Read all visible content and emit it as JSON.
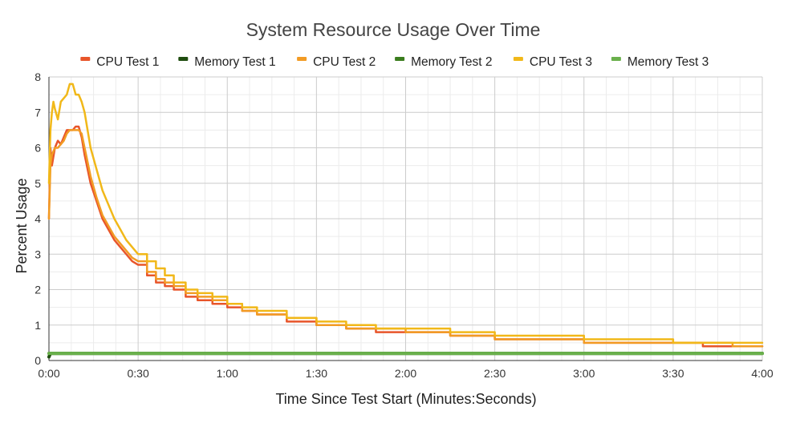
{
  "chart_data": {
    "type": "line",
    "title": "System Resource Usage Over Time",
    "xlabel": "Time Since Test Start (Minutes:Seconds)",
    "ylabel": "Percent Usage",
    "xlim": [
      0,
      240
    ],
    "ylim": [
      0,
      8
    ],
    "x_ticks": [
      0,
      30,
      60,
      90,
      120,
      150,
      180,
      210,
      240
    ],
    "x_tick_labels": [
      "0:00",
      "0:30",
      "1:00",
      "1:30",
      "2:00",
      "2:30",
      "3:00",
      "3:30",
      "4:00"
    ],
    "y_ticks": [
      0,
      1,
      2,
      3,
      4,
      5,
      6,
      7,
      8
    ],
    "grid": true,
    "legend_position": "top",
    "series": [
      {
        "name": "CPU Test 1",
        "color": "#e8552a",
        "x": [
          0,
          0.5,
          1,
          2,
          3,
          4,
          5,
          6,
          7,
          8,
          9,
          10,
          11,
          12,
          14,
          16,
          18,
          20,
          22,
          24,
          26,
          28,
          30,
          33,
          36,
          39,
          42,
          46,
          50,
          55,
          60,
          65,
          70,
          80,
          90,
          100,
          110,
          120,
          135,
          150,
          165,
          180,
          200,
          220,
          230,
          240
        ],
        "y": [
          4.0,
          6.0,
          5.5,
          6.0,
          6.2,
          6.1,
          6.3,
          6.5,
          6.5,
          6.5,
          6.6,
          6.6,
          6.3,
          5.8,
          5.0,
          4.5,
          4.0,
          3.7,
          3.4,
          3.2,
          3.0,
          2.8,
          2.7,
          2.4,
          2.2,
          2.1,
          2.0,
          1.8,
          1.7,
          1.6,
          1.5,
          1.4,
          1.3,
          1.1,
          1.0,
          0.9,
          0.8,
          0.8,
          0.7,
          0.6,
          0.6,
          0.5,
          0.5,
          0.4,
          0.4,
          0.4
        ]
      },
      {
        "name": "Memory Test 1",
        "color": "#1f4d0f",
        "x": [
          0,
          0.5,
          1,
          10,
          60,
          120,
          180,
          220,
          240
        ],
        "y": [
          0.1,
          0.2,
          0.2,
          0.2,
          0.2,
          0.2,
          0.2,
          0.2,
          0.2
        ]
      },
      {
        "name": "CPU Test 2",
        "color": "#f29b24",
        "x": [
          0,
          0.5,
          1,
          2,
          3,
          4,
          5,
          6,
          7,
          8,
          9,
          10,
          11,
          12,
          14,
          16,
          18,
          20,
          22,
          24,
          26,
          28,
          30,
          33,
          36,
          39,
          42,
          46,
          50,
          55,
          60,
          65,
          70,
          80,
          90,
          100,
          110,
          120,
          135,
          150,
          165,
          180,
          200,
          220,
          230,
          240
        ],
        "y": [
          4.0,
          5.5,
          5.8,
          6.0,
          6.0,
          6.1,
          6.2,
          6.4,
          6.5,
          6.5,
          6.5,
          6.5,
          6.4,
          6.0,
          5.2,
          4.6,
          4.1,
          3.8,
          3.5,
          3.3,
          3.1,
          2.9,
          2.8,
          2.5,
          2.3,
          2.2,
          2.1,
          1.9,
          1.8,
          1.7,
          1.6,
          1.4,
          1.3,
          1.2,
          1.0,
          0.9,
          0.9,
          0.8,
          0.7,
          0.6,
          0.6,
          0.5,
          0.5,
          0.5,
          0.4,
          0.4
        ]
      },
      {
        "name": "Memory Test 2",
        "color": "#3b7d1e",
        "x": [
          0,
          0.5,
          1,
          10,
          60,
          120,
          180,
          220,
          240
        ],
        "y": [
          0.2,
          0.2,
          0.2,
          0.2,
          0.2,
          0.2,
          0.2,
          0.2,
          0.2
        ]
      },
      {
        "name": "CPU Test 3",
        "color": "#f1b819",
        "x": [
          0,
          0.5,
          1,
          1.5,
          2,
          3,
          4,
          5,
          6,
          7,
          8,
          9,
          10,
          11,
          12,
          13,
          14,
          16,
          18,
          20,
          22,
          24,
          26,
          28,
          30,
          33,
          36,
          39,
          42,
          46,
          50,
          55,
          60,
          65,
          70,
          80,
          90,
          100,
          110,
          120,
          135,
          150,
          165,
          180,
          200,
          210,
          220,
          230,
          240
        ],
        "y": [
          5.0,
          6.5,
          7.0,
          7.3,
          7.1,
          6.8,
          7.3,
          7.4,
          7.5,
          7.8,
          7.8,
          7.5,
          7.5,
          7.3,
          7.0,
          6.5,
          6.0,
          5.4,
          4.8,
          4.4,
          4.0,
          3.7,
          3.4,
          3.2,
          3.0,
          2.8,
          2.6,
          2.4,
          2.2,
          2.0,
          1.9,
          1.8,
          1.6,
          1.5,
          1.4,
          1.2,
          1.1,
          1.0,
          0.9,
          0.9,
          0.8,
          0.7,
          0.7,
          0.6,
          0.6,
          0.5,
          0.5,
          0.5,
          0.5
        ]
      },
      {
        "name": "Memory Test 3",
        "color": "#6ab04c",
        "x": [
          0,
          0.5,
          1,
          10,
          60,
          120,
          180,
          220,
          240
        ],
        "y": [
          0.2,
          0.2,
          0.2,
          0.2,
          0.2,
          0.2,
          0.2,
          0.2,
          0.2
        ]
      }
    ]
  }
}
